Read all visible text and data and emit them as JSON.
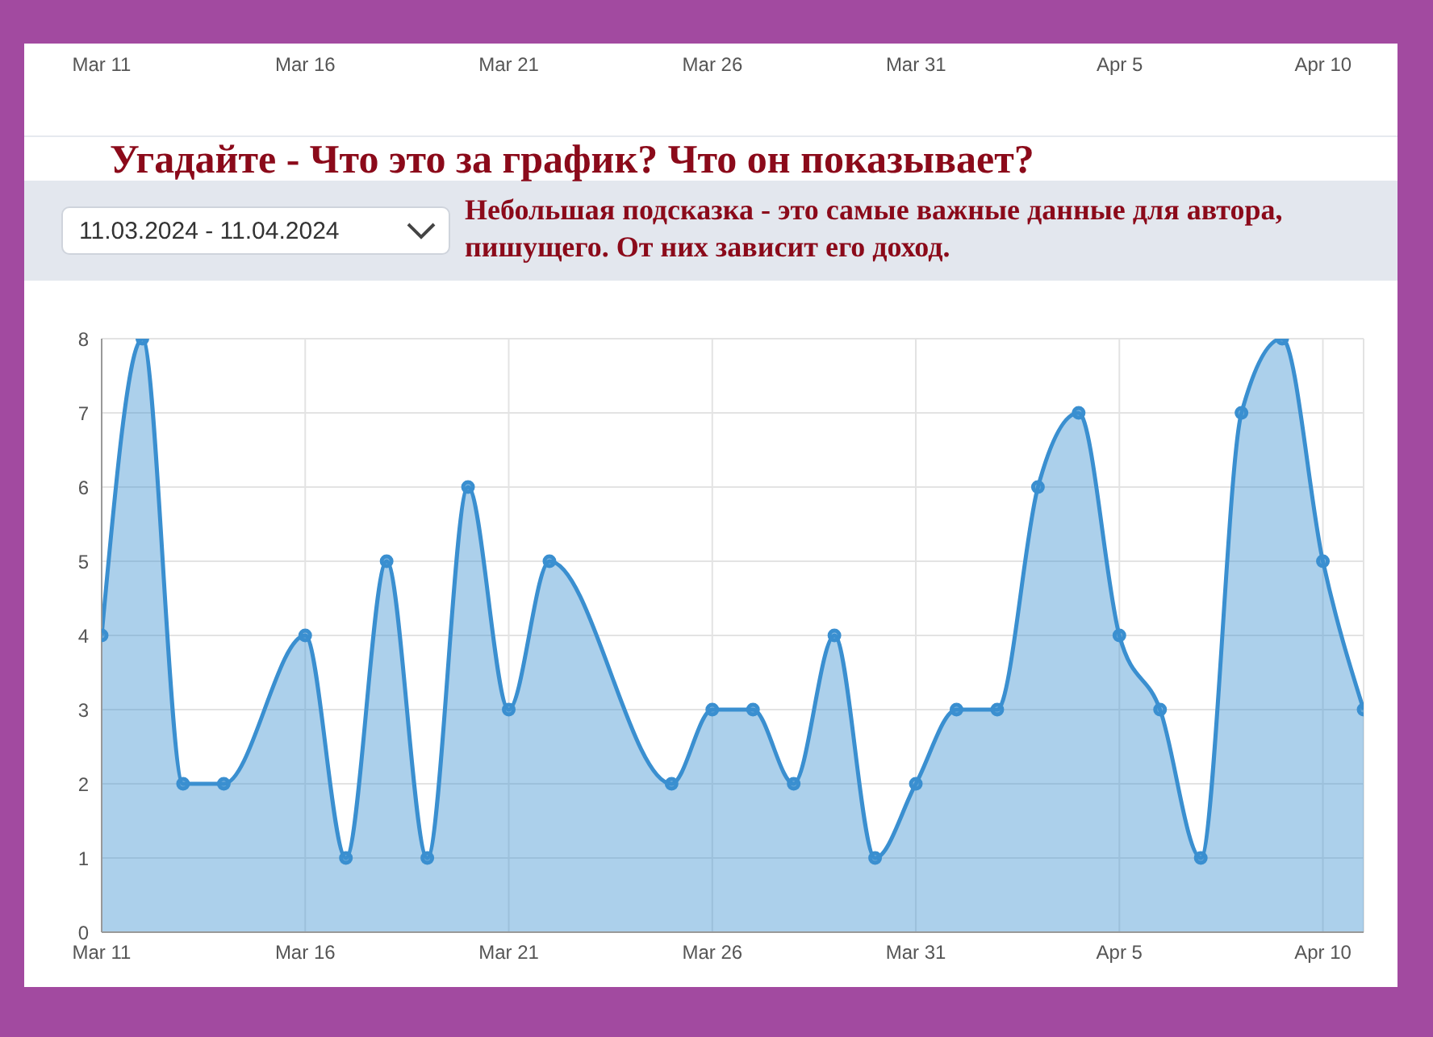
{
  "chart_data": {
    "type": "area",
    "title": "Угадайте - Что это за график? Что он показывает?",
    "annotations": [
      "Mar 11",
      "Mar 16",
      "Mar 21",
      "Mar 26",
      "Mar 31",
      "Apr 5",
      "Apr 10",
      "11.03.2024 - 11.04.2024",
      "Небольшая подсказка - это самые важные данные для автора, пишущего. От них зависит его доход."
    ],
    "x": [
      "2024-03-11",
      "2024-03-12",
      "2024-03-13",
      "2024-03-14",
      "2024-03-16",
      "2024-03-17",
      "2024-03-18",
      "2024-03-19",
      "2024-03-20",
      "2024-03-21",
      "2024-03-22",
      "2024-03-25",
      "2024-03-26",
      "2024-03-27",
      "2024-03-28",
      "2024-03-29",
      "2024-03-30",
      "2024-03-31",
      "2024-04-01",
      "2024-04-02",
      "2024-04-03",
      "2024-04-04",
      "2024-04-05",
      "2024-04-06",
      "2024-04-07",
      "2024-04-08",
      "2024-04-09",
      "2024-04-10",
      "2024-04-11"
    ],
    "series": [
      {
        "color": "#3a8fd0",
        "values": [
          4,
          8,
          2,
          2,
          4,
          1,
          5,
          1,
          6,
          3,
          5,
          2,
          3,
          3,
          2,
          4,
          1,
          2,
          3,
          3,
          6,
          7,
          4,
          3,
          1,
          7,
          8,
          5,
          3
        ]
      }
    ],
    "xlim": [
      "2024-03-11",
      "2024-04-11"
    ],
    "xticks": [
      {
        "value": "2024-03-11",
        "label": "Mar 11"
      },
      {
        "value": "2024-03-16",
        "label": "Mar 16"
      },
      {
        "value": "2024-03-21",
        "label": "Mar 21"
      },
      {
        "value": "2024-03-26",
        "label": "Mar 26"
      },
      {
        "value": "2024-03-31",
        "label": "Mar 31"
      },
      {
        "value": "2024-04-05",
        "label": "Apr 5"
      },
      {
        "value": "2024-04-10",
        "label": "Apr 10"
      }
    ],
    "ylim": [
      0,
      8
    ],
    "yticks": [
      0,
      1,
      2,
      3,
      4,
      5,
      6,
      7,
      8
    ],
    "grid": true,
    "marker": "circle"
  }
}
